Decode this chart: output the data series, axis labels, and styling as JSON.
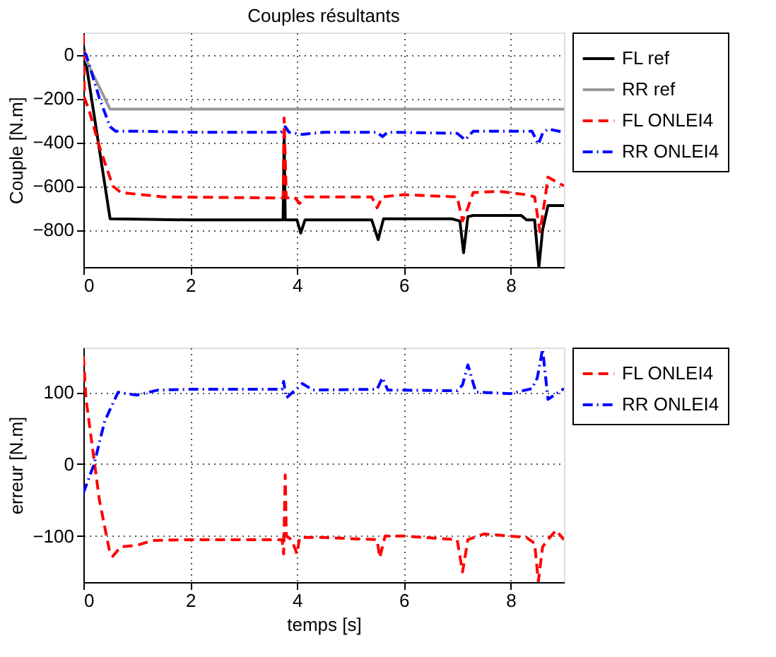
{
  "chart_data": [
    {
      "type": "line",
      "title": "Couples résultants",
      "ylabel": "Couple [N.m]",
      "xlim": [
        0,
        9
      ],
      "xticks": [
        0,
        2,
        4,
        6,
        8
      ],
      "ylim": [
        -970,
        100
      ],
      "yticks": [
        -800,
        -600,
        -400,
        -200,
        0
      ],
      "grid": true,
      "legend": "top right",
      "series": [
        {
          "name": "FL ref",
          "color": "#000000",
          "line_style": "solid",
          "x": [
            0,
            0.5,
            1,
            2,
            3.74,
            3.76,
            3.78,
            4.0,
            4.07,
            4.15,
            5.4,
            5.52,
            5.62,
            6.9,
            7.05,
            7.12,
            7.2,
            7.3,
            8.2,
            8.3,
            8.45,
            8.53,
            8.6,
            8.7,
            9
          ],
          "values": [
            40,
            -750,
            -752,
            -755,
            -755,
            -370,
            -755,
            -755,
            -815,
            -755,
            -755,
            -845,
            -750,
            -750,
            -760,
            -905,
            -740,
            -735,
            -735,
            -755,
            -755,
            -970,
            -800,
            -690,
            -690
          ]
        },
        {
          "name": "RR ref",
          "color": "#999999",
          "line_style": "solid",
          "x": [
            0,
            0.5,
            9
          ],
          "values": [
            0,
            -250,
            -250
          ]
        },
        {
          "name": "FL ONLEI4",
          "color": "#ff0000",
          "line_style": "dashed",
          "x": [
            0,
            0.02,
            0.1,
            0.3,
            0.55,
            0.7,
            1.5,
            3.74,
            3.76,
            3.8,
            3.95,
            4.05,
            4.15,
            5.4,
            5.5,
            5.6,
            6,
            7,
            7.1,
            7.2,
            7.3,
            7.8,
            8.3,
            8.45,
            8.55,
            8.65,
            8.7,
            9
          ],
          "values": [
            90,
            -200,
            -250,
            -420,
            -600,
            -630,
            -650,
            -655,
            -290,
            -655,
            -650,
            -680,
            -650,
            -650,
            -700,
            -650,
            -640,
            -650,
            -760,
            -700,
            -630,
            -625,
            -640,
            -650,
            -810,
            -650,
            -560,
            -600
          ]
        },
        {
          "name": "RR ONLEI4",
          "color": "#0000ff",
          "line_style": "dashdot",
          "x": [
            0,
            0.05,
            0.3,
            0.5,
            0.6,
            1,
            2,
            3.7,
            3.78,
            3.85,
            4.1,
            4.5,
            5.5,
            5.6,
            5.7,
            7,
            7.15,
            7.3,
            8.4,
            8.52,
            8.6,
            8.7,
            9
          ],
          "values": [
            5,
            0,
            -200,
            -330,
            -350,
            -350,
            -355,
            -355,
            -330,
            -355,
            -365,
            -355,
            -355,
            -375,
            -355,
            -360,
            -390,
            -350,
            -350,
            -410,
            -360,
            -340,
            -355
          ]
        }
      ]
    },
    {
      "type": "line",
      "xlabel": "temps [s]",
      "ylabel": "erreur [N.m]",
      "xlim": [
        0,
        9
      ],
      "xticks": [
        0,
        2,
        4,
        6,
        8
      ],
      "ylim": [
        -164,
        162
      ],
      "yticks": [
        -100,
        0,
        100
      ],
      "grid": true,
      "legend": "top right",
      "series": [
        {
          "name": "FL ONLEI4",
          "color": "#ff0000",
          "line_style": "dashed",
          "x": [
            0,
            0.05,
            0.3,
            0.5,
            0.55,
            0.7,
            1,
            1.3,
            2,
            3.72,
            3.75,
            3.78,
            3.8,
            3.9,
            4.0,
            4.05,
            4.5,
            5.5,
            5.55,
            5.65,
            6,
            7,
            7.1,
            7.2,
            7.5,
            8.3,
            8.45,
            8.52,
            8.6,
            8.7,
            8.85,
            9
          ],
          "values": [
            150,
            90,
            -50,
            -125,
            -128,
            -115,
            -113,
            -106,
            -105,
            -105,
            -125,
            -15,
            -100,
            -105,
            -125,
            -102,
            -102,
            -105,
            -130,
            -100,
            -100,
            -105,
            -150,
            -105,
            -97,
            -102,
            -110,
            -163,
            -115,
            -105,
            -92,
            -105
          ]
        },
        {
          "name": "RR ONLEI4",
          "color": "#0000ff",
          "line_style": "dashdot",
          "x": [
            0,
            0.2,
            0.4,
            0.65,
            0.8,
            1.0,
            1.4,
            2,
            3.72,
            3.75,
            3.8,
            4,
            4.1,
            4.3,
            5.5,
            5.6,
            5.7,
            7,
            7.1,
            7.2,
            7.35,
            8,
            8.4,
            8.5,
            8.6,
            8.7,
            8.8,
            9
          ],
          "values": [
            -40,
            0,
            60,
            100,
            98,
            96,
            103,
            104,
            104,
            115,
            92,
            105,
            112,
            103,
            104,
            120,
            103,
            102,
            110,
            138,
            100,
            98,
            105,
            120,
            160,
            90,
            95,
            105
          ]
        }
      ]
    }
  ]
}
